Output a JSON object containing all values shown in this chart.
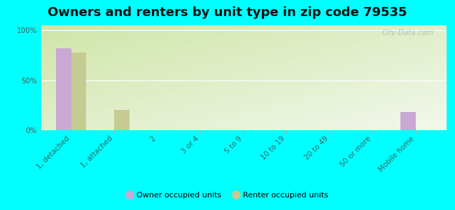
{
  "title": "Owners and renters by unit type in zip code 79535",
  "categories": [
    "1, detached",
    "1, attached",
    "2",
    "3 or 4",
    "5 to 9",
    "10 to 19",
    "20 to 49",
    "50 or more",
    "Mobile home"
  ],
  "owner_values": [
    82,
    0,
    0,
    0,
    0,
    0,
    0,
    0,
    18
  ],
  "renter_values": [
    78,
    20,
    0,
    0,
    0,
    0,
    0,
    0,
    0
  ],
  "owner_color": "#c9a8d4",
  "renter_color": "#c5cb92",
  "figure_bg": "#00ffff",
  "plot_bg_top_left": "#d8e8b8",
  "plot_bg_bottom_right": "#f0f7e8",
  "ylim": [
    0,
    105
  ],
  "ytick_vals": [
    0,
    50,
    100
  ],
  "ytick_labels": [
    "0%",
    "50%",
    "100%"
  ],
  "bar_width": 0.35,
  "legend_owner": "Owner occupied units",
  "legend_renter": "Renter occupied units",
  "watermark": "City-Data.com",
  "title_fontsize": 13,
  "axis_tick_fontsize": 7.5,
  "legend_fontsize": 8,
  "xtick_color": "#336666",
  "ytick_color": "#555555",
  "grid_color": "#ffffff",
  "watermark_color": "#aabbaa"
}
